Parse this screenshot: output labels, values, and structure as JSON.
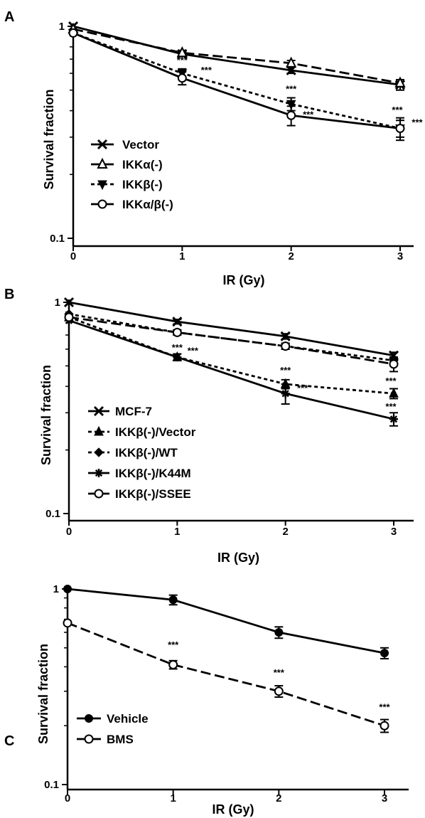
{
  "chart_data": [
    {
      "panel": "A",
      "type": "line",
      "x": [
        0,
        1,
        2,
        3
      ],
      "xlabel": "IR (Gy)",
      "ylabel": "Survival fraction",
      "yscale": "log",
      "ylim": [
        0.1,
        1
      ],
      "xlim": [
        0,
        3
      ],
      "y_ticks": [
        "0.1",
        "1"
      ],
      "x_ticks": [
        "0",
        "1",
        "2",
        "3"
      ],
      "legend_position": "bottom-left",
      "series": [
        {
          "name": "Vector",
          "marker": "x",
          "dash": "solid",
          "values": [
            1.0,
            0.74,
            0.62,
            0.53
          ],
          "err": [
            0,
            0.02,
            0.02,
            0.03
          ]
        },
        {
          "name": "IKKα(-)",
          "marker": "triangle-open",
          "dash": "longdash",
          "values": [
            0.97,
            0.75,
            0.67,
            0.54
          ],
          "err": [
            0,
            0.02,
            0.02,
            0.02
          ]
        },
        {
          "name": "IKKβ(-)",
          "marker": "triangle-down-filled",
          "dash": "dotted",
          "values": [
            0.93,
            0.6,
            0.43,
            0.33
          ],
          "err": [
            0,
            0.03,
            0.03,
            0.03
          ]
        },
        {
          "name": "IKKα/β(-)",
          "marker": "circle-open",
          "dash": "solid",
          "values": [
            0.93,
            0.57,
            0.38,
            0.33
          ],
          "err": [
            0,
            0.04,
            0.04,
            0.04
          ]
        }
      ],
      "annotations": [
        {
          "x": 1,
          "text": "***",
          "y": 0.67,
          "dx": 0
        },
        {
          "x": 1,
          "text": "***",
          "y": 0.6,
          "dx": 34
        },
        {
          "x": 2,
          "text": "***",
          "y": 0.49,
          "dx": 0
        },
        {
          "x": 2,
          "text": "***",
          "y": 0.37,
          "dx": 24
        },
        {
          "x": 3,
          "text": "***",
          "y": 0.39,
          "dx": -4
        },
        {
          "x": 3,
          "text": "***",
          "y": 0.34,
          "dx": 24
        }
      ]
    },
    {
      "panel": "B",
      "type": "line",
      "x": [
        0,
        1,
        2,
        3
      ],
      "xlabel": "IR (Gy)",
      "ylabel": "Survival fraction",
      "yscale": "log",
      "ylim": [
        0.1,
        1
      ],
      "xlim": [
        0,
        3
      ],
      "y_ticks": [
        "0.1",
        "1"
      ],
      "x_ticks": [
        "0",
        "1",
        "2",
        "3"
      ],
      "legend_position": "bottom-left",
      "series": [
        {
          "name": "MCF-7",
          "marker": "x",
          "dash": "solid",
          "values": [
            1.0,
            0.81,
            0.69,
            0.56
          ],
          "err": [
            0,
            0.02,
            0.02,
            0.02
          ]
        },
        {
          "name": "IKKβ(-)/Vector",
          "marker": "triangle-filled",
          "dash": "dotted",
          "values": [
            0.85,
            0.55,
            0.41,
            0.37
          ],
          "err": [
            0,
            0.02,
            0.02,
            0.02
          ]
        },
        {
          "name": "IKKβ(-)/WT",
          "marker": "diamond-filled",
          "dash": "dotted",
          "values": [
            0.88,
            0.72,
            0.62,
            0.53
          ],
          "err": [
            0,
            0.02,
            0.02,
            0.02
          ]
        },
        {
          "name": "IKKβ(-)/K44M",
          "marker": "star",
          "dash": "solid",
          "values": [
            0.82,
            0.55,
            0.37,
            0.28
          ],
          "err": [
            0,
            0.02,
            0.04,
            0.02
          ]
        },
        {
          "name": "IKKβ(-)/SSEE",
          "marker": "circle-open",
          "dash": "longdash",
          "values": [
            0.85,
            0.72,
            0.62,
            0.51
          ],
          "err": [
            0,
            0.02,
            0.02,
            0.04
          ]
        }
      ],
      "annotations": [
        {
          "x": 1,
          "text": "***",
          "y": 0.59,
          "dx": 0
        },
        {
          "x": 1,
          "text": "***",
          "y": 0.57,
          "dx": 22
        },
        {
          "x": 2,
          "text": "***",
          "y": 0.46,
          "dx": 0
        },
        {
          "x": 2,
          "text": "***",
          "y": 0.38,
          "dx": 24
        },
        {
          "x": 3,
          "text": "***",
          "y": 0.41,
          "dx": -4
        },
        {
          "x": 3,
          "text": "***",
          "y": 0.31,
          "dx": -4
        }
      ]
    },
    {
      "panel": "C",
      "type": "line",
      "x": [
        0,
        1,
        2,
        3
      ],
      "xlabel": "IR (Gy)",
      "ylabel": "Survival fraction",
      "yscale": "log",
      "ylim": [
        0.1,
        1
      ],
      "xlim": [
        0,
        3
      ],
      "y_ticks": [
        "0.1",
        "1"
      ],
      "x_ticks": [
        "0",
        "1",
        "2",
        "3"
      ],
      "legend_position": "bottom-left",
      "series": [
        {
          "name": "Vehicle",
          "marker": "circle-filled",
          "dash": "solid",
          "values": [
            1.0,
            0.88,
            0.6,
            0.47
          ],
          "err": [
            0,
            0.05,
            0.04,
            0.03
          ]
        },
        {
          "name": "BMS",
          "marker": "circle-open",
          "dash": "longdash",
          "values": [
            0.67,
            0.41,
            0.3,
            0.2
          ],
          "err": [
            0,
            0.02,
            0.02,
            0.015
          ]
        }
      ],
      "annotations": [
        {
          "x": 1,
          "text": "***",
          "y": 0.5,
          "dx": 0
        },
        {
          "x": 2,
          "text": "***",
          "y": 0.36,
          "dx": 0
        },
        {
          "x": 3,
          "text": "***",
          "y": 0.24,
          "dx": 0
        }
      ]
    }
  ]
}
